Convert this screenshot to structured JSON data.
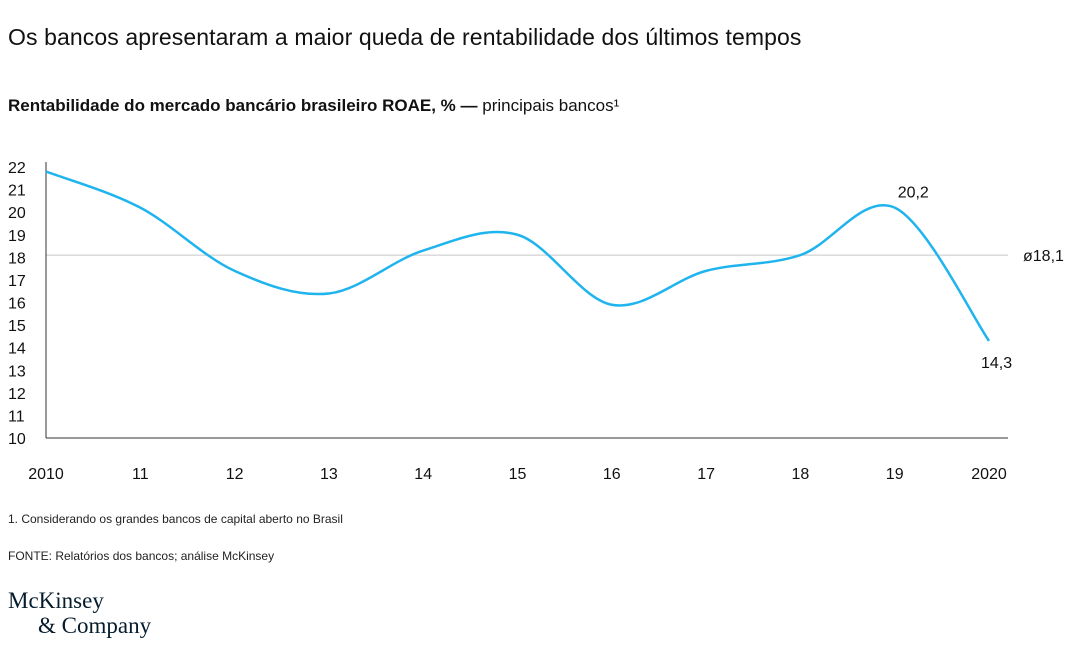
{
  "title": "Os bancos apresentaram a maior queda de rentabilidade dos últimos tempos",
  "subtitle_bold": "Rentabilidade do mercado bancário brasileiro ROAE, % —",
  "subtitle_regular": " principais bancos¹",
  "footnote": "1. Considerando os grandes bancos de capital aberto no Brasil",
  "source": "FONTE: Relatórios dos bancos; análise McKinsey",
  "logo": {
    "line1": "McKinsey",
    "line2": "& Company"
  },
  "chart_data": {
    "type": "line",
    "categories": [
      "2010",
      "11",
      "12",
      "13",
      "14",
      "15",
      "16",
      "17",
      "18",
      "19",
      "2020"
    ],
    "values": [
      21.8,
      20.2,
      17.4,
      16.4,
      18.3,
      19.0,
      15.9,
      17.4,
      18.1,
      20.2,
      14.3
    ],
    "yticks": [
      "10",
      "11",
      "12",
      "13",
      "14",
      "15",
      "16",
      "17",
      "18",
      "19",
      "20",
      "21",
      "22"
    ],
    "ylim": [
      10,
      22
    ],
    "average": 18.1,
    "average_label": "ø18,1",
    "data_labels": [
      {
        "index": 9,
        "text": "20,2"
      },
      {
        "index": 10,
        "text": "14,3"
      }
    ],
    "line_color": "#1fb4ee",
    "grid": false
  }
}
